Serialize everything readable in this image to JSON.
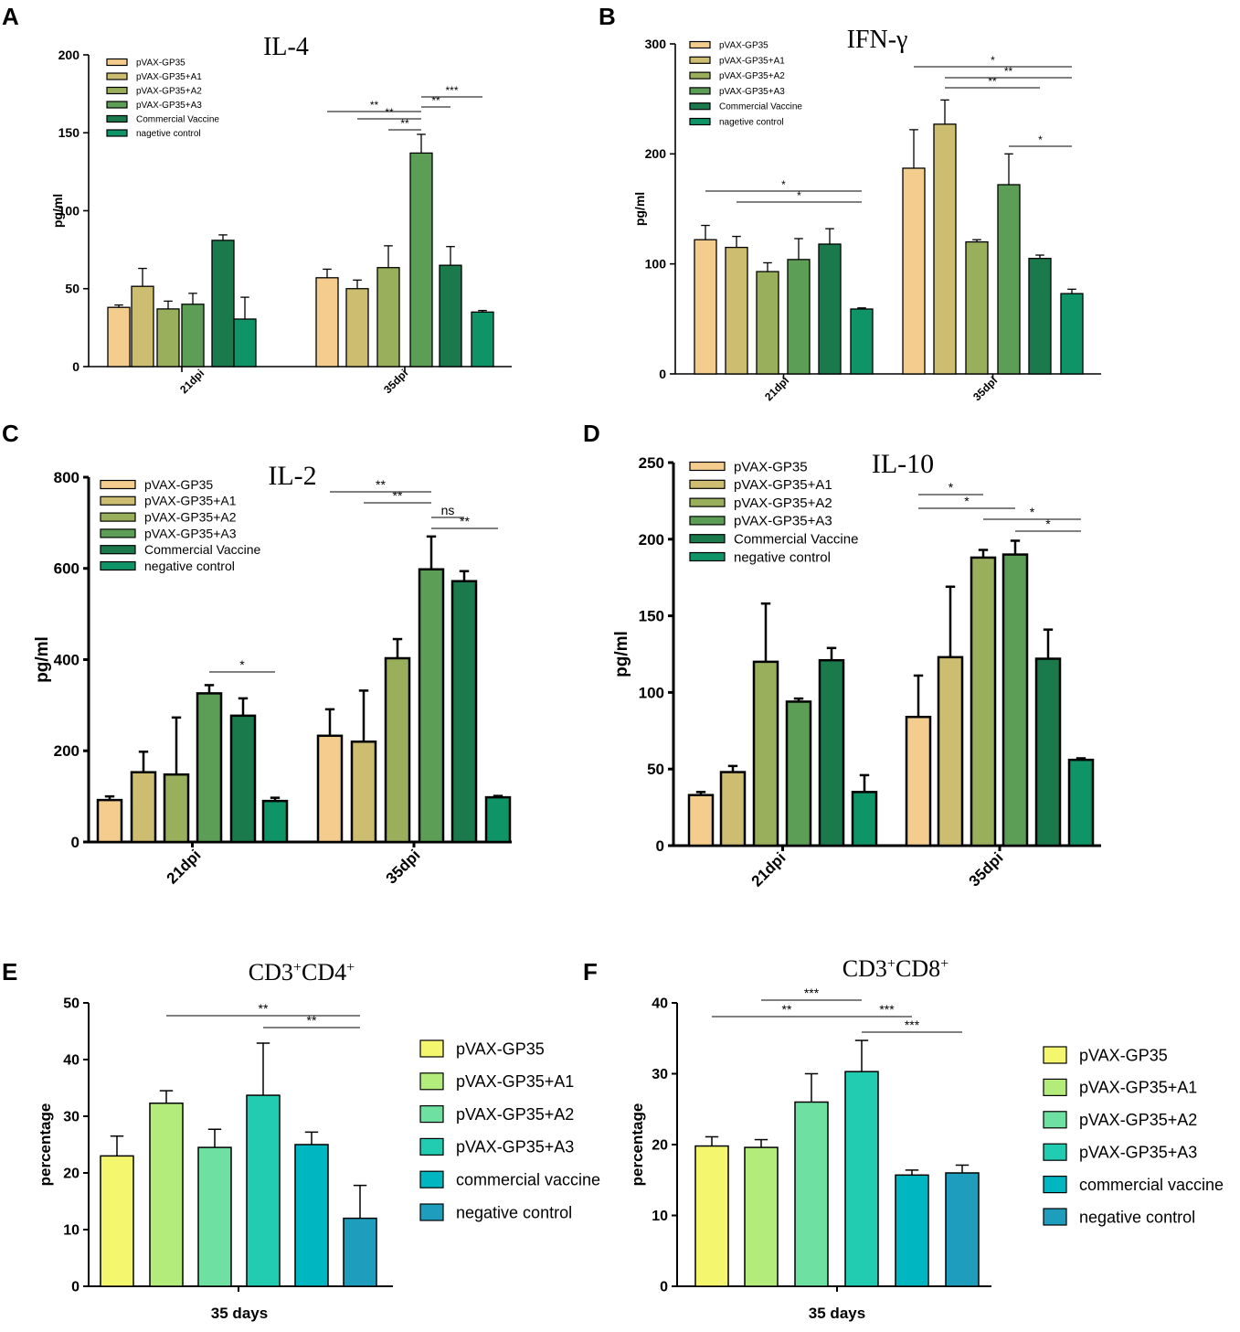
{
  "figure": {
    "panel_letters": [
      "A",
      "B",
      "C",
      "D",
      "E",
      "F"
    ]
  },
  "colors": {
    "cytokine_groups": [
      "#f3cc8e",
      "#cdbd71",
      "#9aaf5c",
      "#5c9e56",
      "#1a7a4c",
      "#0e9467"
    ],
    "cd_groups": [
      "#f4f66e",
      "#b4ec7c",
      "#6ee1a2",
      "#21ccb0",
      "#00b6c0",
      "#1e9dbd"
    ]
  },
  "chart_data": [
    {
      "panel": "A",
      "type": "bar",
      "title": "IL-4",
      "xlabel": "",
      "ylabel": "pg/ml",
      "ylim": [
        0,
        200
      ],
      "yticks": [
        0,
        50,
        100,
        150,
        200
      ],
      "categories": [
        "21dpi",
        "35dpi"
      ],
      "legend": [
        "pVAX-GP35",
        "pVAX-GP35+A1",
        "pVAX-GP35+A2",
        "pVAX-GP35+A3",
        "Commercial Vaccine",
        "nagetive control"
      ],
      "series": [
        {
          "name": "pVAX-GP35",
          "values": [
            38,
            57
          ],
          "errors": [
            1.5,
            5.5
          ]
        },
        {
          "name": "pVAX-GP35+A1",
          "values": [
            51.5,
            50
          ],
          "errors": [
            11.5,
            5.5
          ]
        },
        {
          "name": "pVAX-GP35+A2",
          "values": [
            37,
            63.5
          ],
          "errors": [
            5,
            14
          ]
        },
        {
          "name": "pVAX-GP35+A3",
          "values": [
            40,
            137
          ],
          "errors": [
            7,
            12
          ]
        },
        {
          "name": "Commercial Vaccine",
          "values": [
            81,
            65
          ],
          "errors": [
            3.5,
            12
          ]
        },
        {
          "name": "nagetive control",
          "values": [
            30.5,
            35
          ],
          "errors": [
            14,
            1
          ]
        }
      ],
      "significance": [
        {
          "label": "**",
          "from": [
            1,
            0
          ],
          "to": [
            1,
            3
          ]
        },
        {
          "label": "**",
          "from": [
            1,
            1
          ],
          "to": [
            1,
            3
          ]
        },
        {
          "label": "**",
          "from": [
            1,
            2
          ],
          "to": [
            1,
            3
          ]
        },
        {
          "label": "**",
          "from": [
            1,
            3
          ],
          "to": [
            1,
            4
          ]
        },
        {
          "label": "***",
          "from": [
            1,
            3
          ],
          "to": [
            1,
            5
          ]
        }
      ]
    },
    {
      "panel": "B",
      "type": "bar",
      "title": "IFN-γ",
      "xlabel": "",
      "ylabel": "pg/ml",
      "ylim": [
        0,
        300
      ],
      "yticks": [
        0,
        100,
        200,
        300
      ],
      "categories": [
        "21dpi",
        "35dpi"
      ],
      "legend": [
        "pVAX-GP35",
        "pVAX-GP35+A1",
        "pVAX-GP35+A2",
        "pVAX-GP35+A3",
        "Commercial Vaccine",
        "nagetive control"
      ],
      "series": [
        {
          "name": "pVAX-GP35",
          "values": [
            122,
            187
          ],
          "errors": [
            13,
            35
          ]
        },
        {
          "name": "pVAX-GP35+A1",
          "values": [
            115,
            227
          ],
          "errors": [
            10,
            22
          ]
        },
        {
          "name": "pVAX-GP35+A2",
          "values": [
            93,
            120
          ],
          "errors": [
            8,
            2
          ]
        },
        {
          "name": "pVAX-GP35+A3",
          "values": [
            104,
            172
          ],
          "errors": [
            19,
            28
          ]
        },
        {
          "name": "Commercial Vaccine",
          "values": [
            118,
            105
          ],
          "errors": [
            14,
            3
          ]
        },
        {
          "name": "nagetive control",
          "values": [
            59,
            73
          ],
          "errors": [
            1,
            4
          ]
        }
      ],
      "significance": [
        {
          "label": "*",
          "from": [
            0,
            0
          ],
          "to": [
            0,
            5
          ]
        },
        {
          "label": "*",
          "from": [
            0,
            1
          ],
          "to": [
            0,
            5
          ]
        },
        {
          "label": "*",
          "from": [
            1,
            0
          ],
          "to": [
            1,
            5
          ]
        },
        {
          "label": "**",
          "from": [
            1,
            1
          ],
          "to": [
            1,
            5
          ]
        },
        {
          "label": "**",
          "from": [
            1,
            1
          ],
          "to": [
            1,
            4
          ]
        },
        {
          "label": "*",
          "from": [
            1,
            3
          ],
          "to": [
            1,
            5
          ]
        }
      ]
    },
    {
      "panel": "C",
      "type": "bar",
      "title": "IL-2",
      "xlabel": "",
      "ylabel": "pg/ml",
      "ylim": [
        0,
        800
      ],
      "yticks": [
        0,
        200,
        400,
        600,
        800
      ],
      "categories": [
        "21dpi",
        "35dpi"
      ],
      "legend": [
        "pVAX-GP35",
        "pVAX-GP35+A1",
        "pVAX-GP35+A2",
        "pVAX-GP35+A3",
        "Commercial Vaccine",
        "negative control"
      ],
      "series": [
        {
          "name": "pVAX-GP35",
          "values": [
            92,
            233
          ],
          "errors": [
            8,
            58
          ]
        },
        {
          "name": "pVAX-GP35+A1",
          "values": [
            153,
            220
          ],
          "errors": [
            45,
            112
          ]
        },
        {
          "name": "pVAX-GP35+A2",
          "values": [
            148,
            403
          ],
          "errors": [
            125,
            42
          ]
        },
        {
          "name": "pVAX-GP35+A3",
          "values": [
            326,
            598
          ],
          "errors": [
            18,
            72
          ]
        },
        {
          "name": "Commercial Vaccine",
          "values": [
            277,
            572
          ],
          "errors": [
            38,
            22
          ]
        },
        {
          "name": "negative control",
          "values": [
            90,
            98
          ],
          "errors": [
            7,
            3
          ]
        }
      ],
      "significance": [
        {
          "label": "*",
          "from": [
            0,
            3
          ],
          "to": [
            0,
            5
          ]
        },
        {
          "label": "**",
          "from": [
            1,
            0
          ],
          "to": [
            1,
            3
          ]
        },
        {
          "label": "**",
          "from": [
            1,
            1
          ],
          "to": [
            1,
            3
          ]
        },
        {
          "label": "ns",
          "from": [
            1,
            3
          ],
          "to": [
            1,
            4
          ]
        },
        {
          "label": "**",
          "from": [
            1,
            3
          ],
          "to": [
            1,
            5
          ]
        }
      ]
    },
    {
      "panel": "D",
      "type": "bar",
      "title": "IL-10",
      "xlabel": "",
      "ylabel": "pg/ml",
      "ylim": [
        0,
        250
      ],
      "yticks": [
        0,
        50,
        100,
        150,
        200,
        250
      ],
      "categories": [
        "21dpi",
        "35dpi"
      ],
      "legend": [
        "pVAX-GP35",
        "pVAX-GP35+A1",
        "pVAX-GP35+A2",
        "pVAX-GP35+A3",
        "Commercial Vaccine",
        "negative control"
      ],
      "series": [
        {
          "name": "pVAX-GP35",
          "values": [
            33,
            84
          ],
          "errors": [
            2,
            27
          ]
        },
        {
          "name": "pVAX-GP35+A1",
          "values": [
            48,
            123
          ],
          "errors": [
            4,
            46
          ]
        },
        {
          "name": "pVAX-GP35+A2",
          "values": [
            120,
            188
          ],
          "errors": [
            38,
            5
          ]
        },
        {
          "name": "pVAX-GP35+A3",
          "values": [
            94,
            190
          ],
          "errors": [
            2,
            9
          ]
        },
        {
          "name": "Commercial Vaccine",
          "values": [
            121,
            122
          ],
          "errors": [
            8,
            19
          ]
        },
        {
          "name": "negative control",
          "values": [
            35,
            56
          ],
          "errors": [
            11,
            1
          ]
        }
      ],
      "significance": [
        {
          "label": "*",
          "from": [
            1,
            0
          ],
          "to": [
            1,
            2
          ]
        },
        {
          "label": "*",
          "from": [
            1,
            0
          ],
          "to": [
            1,
            3
          ]
        },
        {
          "label": "*",
          "from": [
            1,
            2
          ],
          "to": [
            1,
            5
          ]
        },
        {
          "label": "*",
          "from": [
            1,
            3
          ],
          "to": [
            1,
            5
          ]
        }
      ]
    },
    {
      "panel": "E",
      "type": "bar",
      "title": "CD3+CD4+",
      "title_parts": [
        "CD3",
        "+",
        "CD4",
        "+"
      ],
      "xlabel": "",
      "ylabel": "percentage",
      "ylim": [
        0,
        50
      ],
      "yticks": [
        0,
        10,
        20,
        30,
        40,
        50
      ],
      "categories": [
        "35 days"
      ],
      "legend": [
        "pVAX-GP35",
        "pVAX-GP35+A1",
        "pVAX-GP35+A2",
        "pVAX-GP35+A3",
        "commercial vaccine",
        "negative control"
      ],
      "series": [
        {
          "name": "pVAX-GP35",
          "values": [
            23
          ],
          "errors": [
            3.5
          ]
        },
        {
          "name": "pVAX-GP35+A1",
          "values": [
            32.3
          ],
          "errors": [
            2.2
          ]
        },
        {
          "name": "pVAX-GP35+A2",
          "values": [
            24.5
          ],
          "errors": [
            3.2
          ]
        },
        {
          "name": "pVAX-GP35+A3",
          "values": [
            33.7
          ],
          "errors": [
            9.2
          ]
        },
        {
          "name": "commercial vaccine",
          "values": [
            25
          ],
          "errors": [
            2.2
          ]
        },
        {
          "name": "negative control",
          "values": [
            12
          ],
          "errors": [
            5.8
          ]
        }
      ],
      "significance": [
        {
          "label": "**",
          "from": [
            0,
            1
          ],
          "to": [
            0,
            5
          ]
        },
        {
          "label": "**",
          "from": [
            0,
            3
          ],
          "to": [
            0,
            5
          ]
        }
      ]
    },
    {
      "panel": "F",
      "type": "bar",
      "title": "CD3+CD8+",
      "title_parts": [
        "CD3",
        "+",
        "CD8",
        "+"
      ],
      "xlabel": "",
      "ylabel": "percentage",
      "ylim": [
        0,
        40
      ],
      "yticks": [
        0,
        10,
        20,
        30,
        40
      ],
      "categories": [
        "35 days"
      ],
      "legend": [
        "pVAX-GP35",
        "pVAX-GP35+A1",
        "pVAX-GP35+A2",
        "pVAX-GP35+A3",
        "commercial vaccine",
        "negative control"
      ],
      "series": [
        {
          "name": "pVAX-GP35",
          "values": [
            19.8
          ],
          "errors": [
            1.3
          ]
        },
        {
          "name": "pVAX-GP35+A1",
          "values": [
            19.6
          ],
          "errors": [
            1.1
          ]
        },
        {
          "name": "pVAX-GP35+A2",
          "values": [
            26
          ],
          "errors": [
            4
          ]
        },
        {
          "name": "pVAX-GP35+A3",
          "values": [
            30.3
          ],
          "errors": [
            4.4
          ]
        },
        {
          "name": "commercial vaccine",
          "values": [
            15.7
          ],
          "errors": [
            0.7
          ]
        },
        {
          "name": "negative control",
          "values": [
            16
          ],
          "errors": [
            1.1
          ]
        }
      ],
      "significance": [
        {
          "label": "**",
          "from": [
            0,
            0
          ],
          "to": [
            0,
            3
          ]
        },
        {
          "label": "***",
          "from": [
            0,
            1
          ],
          "to": [
            0,
            3
          ]
        },
        {
          "label": "***",
          "from": [
            0,
            3
          ],
          "to": [
            0,
            4
          ]
        },
        {
          "label": "***",
          "from": [
            0,
            3
          ],
          "to": [
            0,
            5
          ]
        }
      ]
    }
  ]
}
